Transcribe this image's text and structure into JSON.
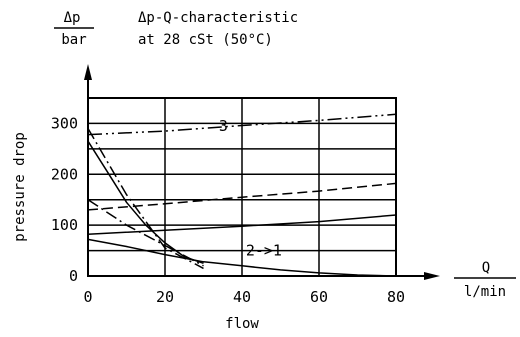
{
  "chart_data": {
    "type": "line",
    "title_line1": "Δp-Q-characteristic",
    "title_line2": "at 28 cSt (50°C)",
    "y_unit": {
      "numerator": "Δp",
      "denominator": "bar"
    },
    "x_unit": {
      "numerator": "Q",
      "denominator": "l/min"
    },
    "ylabel": "pressure drop",
    "xlabel": "flow",
    "xlim": [
      0,
      80
    ],
    "ylim": [
      0,
      350
    ],
    "x_ticks": [
      "0",
      "20",
      "40",
      "60",
      "80"
    ],
    "y_ticks": [
      "0",
      "100",
      "200",
      "300"
    ],
    "grid": true,
    "annotations": [
      {
        "text": "3",
        "x": 34,
        "y": 285
      },
      {
        "text": "2->1",
        "x": 41,
        "y": 40
      }
    ],
    "series": [
      {
        "style": "dash-dot-dot",
        "x": [
          0,
          20,
          40,
          60,
          80
        ],
        "y": [
          278,
          285,
          296,
          306,
          318
        ]
      },
      {
        "style": "dashed",
        "x": [
          0,
          20,
          40,
          60,
          80
        ],
        "y": [
          130,
          142,
          155,
          167,
          182
        ]
      },
      {
        "style": "solid",
        "x": [
          0,
          20,
          40,
          60,
          80
        ],
        "y": [
          82,
          90,
          98,
          107,
          120
        ]
      },
      {
        "style": "solid",
        "x": [
          0,
          10,
          20,
          30,
          40,
          50,
          60,
          70,
          80
        ],
        "y": [
          72,
          58,
          42,
          28,
          20,
          12,
          6,
          2,
          0
        ]
      },
      {
        "style": "solid",
        "x": [
          0,
          5,
          10,
          15,
          20,
          25,
          30
        ],
        "y": [
          265,
          205,
          145,
          100,
          65,
          38,
          25
        ]
      },
      {
        "style": "dash-dot",
        "x": [
          0,
          10,
          20,
          30
        ],
        "y": [
          290,
          160,
          55,
          15
        ]
      },
      {
        "style": "dash-dot",
        "x": [
          0,
          10,
          20,
          30
        ],
        "y": [
          150,
          100,
          60,
          20
        ]
      }
    ]
  }
}
